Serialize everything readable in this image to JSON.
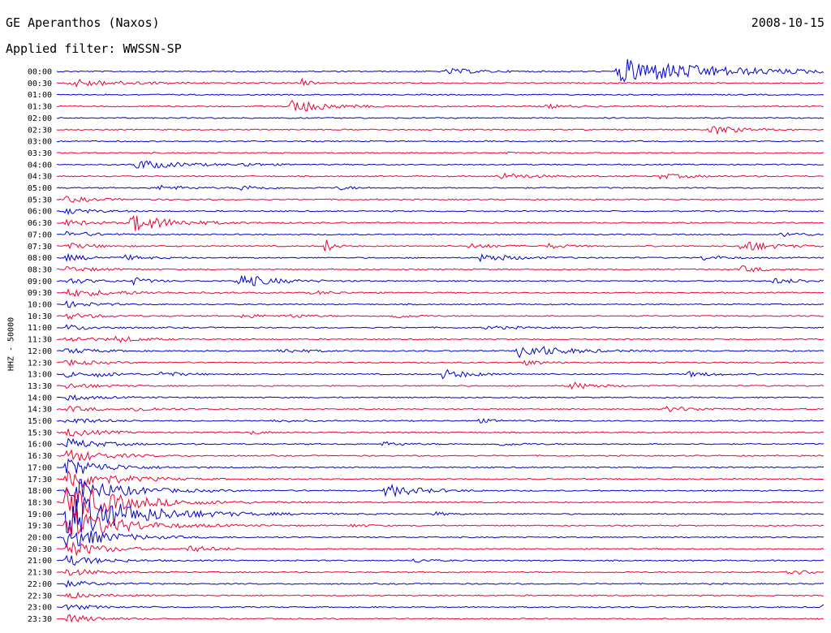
{
  "header": {
    "station": "GE Aperanthos (Naxos)",
    "date": "2008-10-15",
    "filter": "Applied filter: WWSSN-SP"
  },
  "chart_data": {
    "type": "line",
    "title": "GE Aperanthos (Naxos)",
    "subtitle": "Applied filter: WWSSN-SP",
    "date": "2008-10-15",
    "ylabel": "HHZ - 50000",
    "xlabel": "",
    "grid": false,
    "legend": "none",
    "row_labels": [
      "00:00",
      "00:30",
      "01:00",
      "01:30",
      "02:00",
      "02:30",
      "03:00",
      "03:30",
      "04:00",
      "04:30",
      "05:00",
      "05:30",
      "06:00",
      "06:30",
      "07:00",
      "07:30",
      "08:00",
      "08:30",
      "09:00",
      "09:30",
      "10:00",
      "10:30",
      "11:00",
      "11:30",
      "12:00",
      "12:30",
      "13:00",
      "13:30",
      "14:00",
      "14:30",
      "15:00",
      "15:30",
      "16:00",
      "16:30",
      "17:00",
      "17:30",
      "18:00",
      "18:30",
      "19:00",
      "19:30",
      "20:00",
      "20:30",
      "21:00",
      "21:30",
      "22:00",
      "22:30",
      "23:00",
      "23:30"
    ],
    "colors": [
      "#0000cc",
      "#ee0033"
    ],
    "minutes_per_row": 30,
    "events": [
      {
        "row": "00:00",
        "minute": 15.3,
        "amp": 0.35,
        "dur": 1.2
      },
      {
        "row": "00:00",
        "minute": 22.0,
        "amp": 1.6,
        "dur": 3.5
      },
      {
        "row": "00:30",
        "minute": 0.5,
        "amp": 0.5,
        "dur": 2.0
      },
      {
        "row": "00:30",
        "minute": 9.6,
        "amp": 0.5,
        "dur": 0.3
      },
      {
        "row": "01:30",
        "minute": 9.2,
        "amp": 0.9,
        "dur": 1.2
      },
      {
        "row": "01:30",
        "minute": 19.2,
        "amp": 0.25,
        "dur": 0.8
      },
      {
        "row": "02:30",
        "minute": 25.6,
        "amp": 0.6,
        "dur": 1.0
      },
      {
        "row": "03:30",
        "minute": 17.5,
        "amp": 0.15,
        "dur": 0.6
      },
      {
        "row": "04:00",
        "minute": 3.1,
        "amp": 0.6,
        "dur": 1.5
      },
      {
        "row": "04:00",
        "minute": 7.3,
        "amp": 0.25,
        "dur": 0.8
      },
      {
        "row": "04:30",
        "minute": 17.3,
        "amp": 0.4,
        "dur": 1.2
      },
      {
        "row": "04:30",
        "minute": 23.6,
        "amp": 0.3,
        "dur": 1.2
      },
      {
        "row": "05:00",
        "minute": 4.0,
        "amp": 0.3,
        "dur": 1.0
      },
      {
        "row": "05:00",
        "minute": 7.2,
        "amp": 0.35,
        "dur": 0.8
      },
      {
        "row": "05:00",
        "minute": 11.0,
        "amp": 0.25,
        "dur": 0.6
      },
      {
        "row": "06:30",
        "minute": 2.9,
        "amp": 1.1,
        "dur": 1.5
      },
      {
        "row": "07:00",
        "minute": 28.4,
        "amp": 0.3,
        "dur": 0.8
      },
      {
        "row": "07:30",
        "minute": 10.5,
        "amp": 0.9,
        "dur": 0.3
      },
      {
        "row": "07:30",
        "minute": 16.2,
        "amp": 0.3,
        "dur": 1.0
      },
      {
        "row": "07:30",
        "minute": 19.2,
        "amp": 0.3,
        "dur": 0.8
      },
      {
        "row": "07:30",
        "minute": 26.8,
        "amp": 0.8,
        "dur": 1.0
      },
      {
        "row": "08:00",
        "minute": 2.7,
        "amp": 0.3,
        "dur": 0.8
      },
      {
        "row": "08:00",
        "minute": 16.6,
        "amp": 0.5,
        "dur": 1.2
      },
      {
        "row": "08:00",
        "minute": 25.3,
        "amp": 0.3,
        "dur": 0.8
      },
      {
        "row": "08:30",
        "minute": 26.8,
        "amp": 0.4,
        "dur": 0.8
      },
      {
        "row": "09:00",
        "minute": 3.0,
        "amp": 0.45,
        "dur": 0.6
      },
      {
        "row": "09:00",
        "minute": 7.1,
        "amp": 0.9,
        "dur": 1.2
      },
      {
        "row": "09:00",
        "minute": 28.0,
        "amp": 0.3,
        "dur": 1.5
      },
      {
        "row": "09:30",
        "minute": 0.5,
        "amp": 0.45,
        "dur": 2.0
      },
      {
        "row": "09:30",
        "minute": 10.0,
        "amp": 0.2,
        "dur": 1.0
      },
      {
        "row": "10:30",
        "minute": 7.3,
        "amp": 0.35,
        "dur": 0.6
      },
      {
        "row": "10:30",
        "minute": 9.2,
        "amp": 0.3,
        "dur": 0.6
      },
      {
        "row": "10:30",
        "minute": 13.1,
        "amp": 0.35,
        "dur": 0.6
      },
      {
        "row": "11:00",
        "minute": 16.8,
        "amp": 0.2,
        "dur": 1.2
      },
      {
        "row": "11:30",
        "minute": 2.3,
        "amp": 0.4,
        "dur": 1.0
      },
      {
        "row": "12:00",
        "minute": 8.7,
        "amp": 0.3,
        "dur": 1.0
      },
      {
        "row": "12:00",
        "minute": 18.1,
        "amp": 0.9,
        "dur": 1.5
      },
      {
        "row": "12:30",
        "minute": 18.3,
        "amp": 0.3,
        "dur": 0.8
      },
      {
        "row": "13:00",
        "minute": 1.5,
        "amp": 0.3,
        "dur": 1.0
      },
      {
        "row": "13:00",
        "minute": 4.0,
        "amp": 0.35,
        "dur": 0.8
      },
      {
        "row": "13:00",
        "minute": 15.1,
        "amp": 0.6,
        "dur": 1.0
      },
      {
        "row": "13:00",
        "minute": 24.7,
        "amp": 0.3,
        "dur": 1.0
      },
      {
        "row": "13:30",
        "minute": 20.1,
        "amp": 0.5,
        "dur": 0.8
      },
      {
        "row": "14:30",
        "minute": 3.0,
        "amp": 0.3,
        "dur": 1.2
      },
      {
        "row": "14:30",
        "minute": 23.8,
        "amp": 0.3,
        "dur": 1.5
      },
      {
        "row": "15:00",
        "minute": 16.4,
        "amp": 0.25,
        "dur": 0.8
      },
      {
        "row": "15:00",
        "minute": 8.5,
        "amp": 0.2,
        "dur": 0.8
      },
      {
        "row": "15:30",
        "minute": 7.6,
        "amp": 0.2,
        "dur": 0.6
      },
      {
        "row": "16:00",
        "minute": 12.8,
        "amp": 0.25,
        "dur": 0.8
      },
      {
        "row": "16:00",
        "minute": 17.3,
        "amp": 0.2,
        "dur": 0.8
      },
      {
        "row": "18:00",
        "minute": 12.9,
        "amp": 0.8,
        "dur": 1.2
      },
      {
        "row": "19:00",
        "minute": 14.8,
        "amp": 0.2,
        "dur": 0.6
      },
      {
        "row": "19:30",
        "minute": 11.5,
        "amp": 0.2,
        "dur": 0.6
      },
      {
        "row": "20:30",
        "minute": 5.2,
        "amp": 0.4,
        "dur": 1.0
      },
      {
        "row": "21:00",
        "minute": 14.0,
        "amp": 0.25,
        "dur": 0.6
      },
      {
        "row": "21:30",
        "minute": 28.5,
        "amp": 0.3,
        "dur": 1.5
      },
      {
        "row": "23:00",
        "minute": 29.8,
        "amp": 0.4,
        "dur": 0.4
      },
      {
        "row": "23:30",
        "minute": 0.5,
        "amp": 0.5,
        "dur": 1.0
      }
    ],
    "large_event": {
      "start_row": "05:30",
      "end_row": "23:30",
      "minute": 0.4,
      "peak_row": "19:00",
      "max_amp": 3.0
    }
  }
}
